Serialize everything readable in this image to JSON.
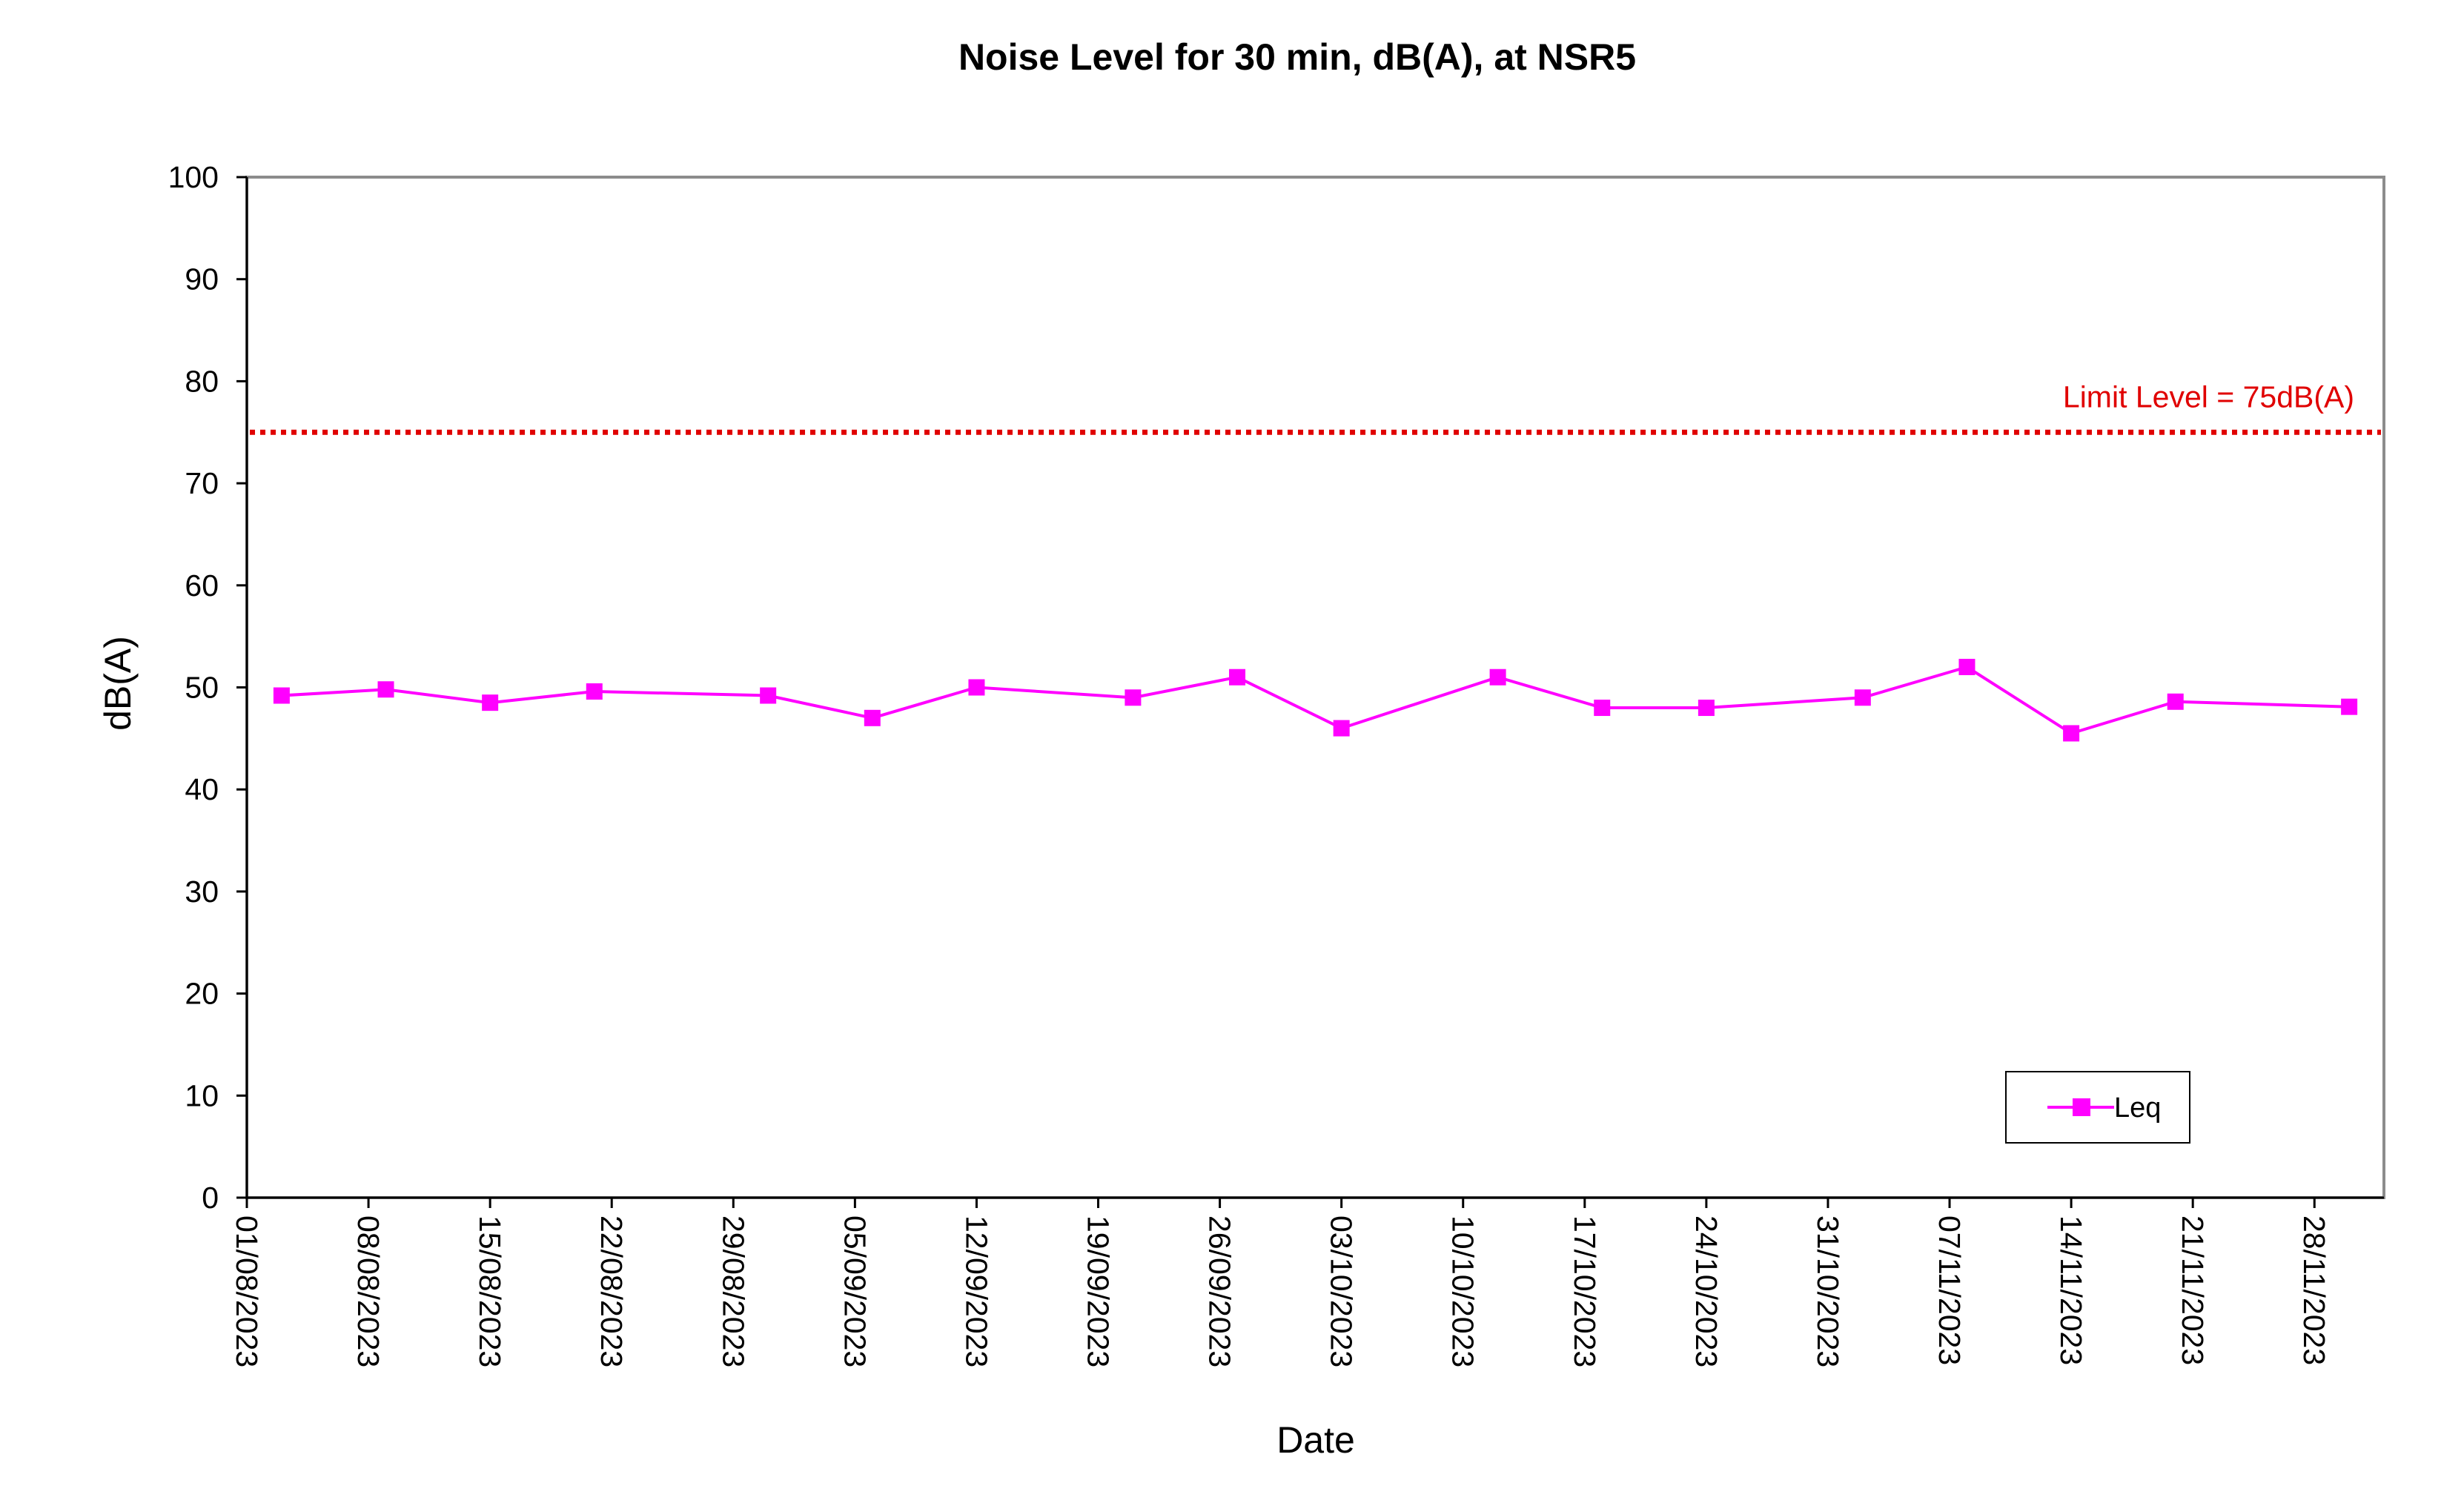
{
  "chart_data": {
    "type": "line",
    "title": "Noise Level for 30 min, dB(A), at NSR5",
    "xlabel": "Date",
    "ylabel": "dB(A)",
    "ylim": [
      0,
      100
    ],
    "yticks": [
      0,
      10,
      20,
      30,
      40,
      50,
      60,
      70,
      80,
      90,
      100
    ],
    "xlim": [
      "01/08/2023",
      "02/12/2023"
    ],
    "xticks": [
      "01/08/2023",
      "08/08/2023",
      "15/08/2023",
      "22/08/2023",
      "29/08/2023",
      "05/09/2023",
      "12/09/2023",
      "19/09/2023",
      "26/09/2023",
      "03/10/2023",
      "10/10/2023",
      "17/10/2023",
      "24/10/2023",
      "31/10/2023",
      "07/11/2023",
      "14/11/2023",
      "21/11/2023",
      "28/11/2023"
    ],
    "grid": false,
    "legend_position": "bottom-right",
    "series": [
      {
        "name": "Leq",
        "color": "#ff00ff",
        "marker": "square",
        "points": [
          {
            "x": "03/08/2023",
            "y": 49.2
          },
          {
            "x": "09/08/2023",
            "y": 49.8
          },
          {
            "x": "15/08/2023",
            "y": 48.5
          },
          {
            "x": "21/08/2023",
            "y": 49.6
          },
          {
            "x": "31/08/2023",
            "y": 49.2
          },
          {
            "x": "06/09/2023",
            "y": 47.0
          },
          {
            "x": "12/09/2023",
            "y": 50.0
          },
          {
            "x": "21/09/2023",
            "y": 49.0
          },
          {
            "x": "27/09/2023",
            "y": 51.0
          },
          {
            "x": "03/10/2023",
            "y": 46.0
          },
          {
            "x": "12/10/2023",
            "y": 51.0
          },
          {
            "x": "18/10/2023",
            "y": 48.0
          },
          {
            "x": "24/10/2023",
            "y": 48.0
          },
          {
            "x": "02/11/2023",
            "y": 49.0
          },
          {
            "x": "08/11/2023",
            "y": 52.0
          },
          {
            "x": "14/11/2023",
            "y": 45.5
          },
          {
            "x": "20/11/2023",
            "y": 48.6
          },
          {
            "x": "30/11/2023",
            "y": 48.1
          }
        ]
      }
    ],
    "reference_line": {
      "y": 75,
      "label": "Limit Level = 75dB(A)",
      "color": "#e00000",
      "style": "dotted"
    }
  }
}
